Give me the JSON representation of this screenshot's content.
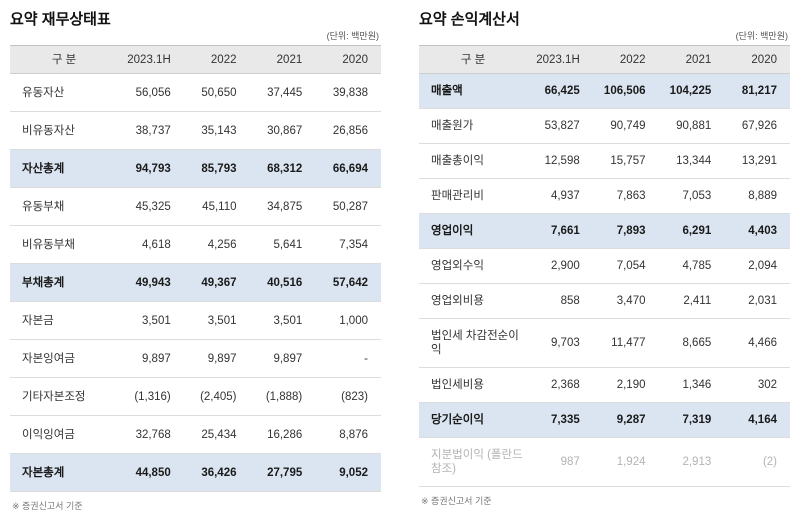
{
  "tables": [
    {
      "title": "요약 재무상태표",
      "unit": "(단위: 백만원)",
      "columns": [
        "구 분",
        "2023.1H",
        "2022",
        "2021",
        "2020"
      ],
      "rows": [
        {
          "label": "유동자산",
          "values": [
            "56,056",
            "50,650",
            "37,445",
            "39,838"
          ],
          "style": "normal"
        },
        {
          "label": "비유동자산",
          "values": [
            "38,737",
            "35,143",
            "30,867",
            "26,856"
          ],
          "style": "normal"
        },
        {
          "label": "자산총계",
          "values": [
            "94,793",
            "85,793",
            "68,312",
            "66,694"
          ],
          "style": "emphasis"
        },
        {
          "label": "유동부채",
          "values": [
            "45,325",
            "45,110",
            "34,875",
            "50,287"
          ],
          "style": "normal"
        },
        {
          "label": "비유동부채",
          "values": [
            "4,618",
            "4,256",
            "5,641",
            "7,354"
          ],
          "style": "normal"
        },
        {
          "label": "부채총계",
          "values": [
            "49,943",
            "49,367",
            "40,516",
            "57,642"
          ],
          "style": "emphasis"
        },
        {
          "label": "자본금",
          "values": [
            "3,501",
            "3,501",
            "3,501",
            "1,000"
          ],
          "style": "normal"
        },
        {
          "label": "자본잉여금",
          "values": [
            "9,897",
            "9,897",
            "9,897",
            "-"
          ],
          "style": "normal"
        },
        {
          "label": "기타자본조정",
          "values": [
            "(1,316)",
            "(2,405)",
            "(1,888)",
            "(823)"
          ],
          "style": "normal"
        },
        {
          "label": "이익잉여금",
          "values": [
            "32,768",
            "25,434",
            "16,286",
            "8,876"
          ],
          "style": "normal"
        },
        {
          "label": "자본총계",
          "values": [
            "44,850",
            "36,426",
            "27,795",
            "9,052"
          ],
          "style": "emphasis"
        }
      ],
      "footnote": "※ 증권신고서 기준"
    },
    {
      "title": "요약 손익계산서",
      "unit": "(단위: 백만원)",
      "columns": [
        "구 분",
        "2023.1H",
        "2022",
        "2021",
        "2020"
      ],
      "rows": [
        {
          "label": "매출액",
          "values": [
            "66,425",
            "106,506",
            "104,225",
            "81,217"
          ],
          "style": "emphasis"
        },
        {
          "label": "매출원가",
          "values": [
            "53,827",
            "90,749",
            "90,881",
            "67,926"
          ],
          "style": "normal"
        },
        {
          "label": "매출총이익",
          "values": [
            "12,598",
            "15,757",
            "13,344",
            "13,291"
          ],
          "style": "normal"
        },
        {
          "label": "판매관리비",
          "values": [
            "4,937",
            "7,863",
            "7,053",
            "8,889"
          ],
          "style": "normal"
        },
        {
          "label": "영업이익",
          "values": [
            "7,661",
            "7,893",
            "6,291",
            "4,403"
          ],
          "style": "emphasis"
        },
        {
          "label": "영업외수익",
          "values": [
            "2,900",
            "7,054",
            "4,785",
            "2,094"
          ],
          "style": "normal"
        },
        {
          "label": "영업외비용",
          "values": [
            "858",
            "3,470",
            "2,411",
            "2,031"
          ],
          "style": "normal"
        },
        {
          "label": "법인세 차감전순이익",
          "values": [
            "9,703",
            "11,477",
            "8,665",
            "4,466"
          ],
          "style": "normal"
        },
        {
          "label": "법인세비용",
          "values": [
            "2,368",
            "2,190",
            "1,346",
            "302"
          ],
          "style": "normal"
        },
        {
          "label": "당기순이익",
          "values": [
            "7,335",
            "9,287",
            "7,319",
            "4,164"
          ],
          "style": "emphasis"
        },
        {
          "label": "지분법이익 (폴란드 참조)",
          "values": [
            "987",
            "1,924",
            "2,913",
            "(2)"
          ],
          "style": "muted"
        }
      ],
      "footnote": "※ 증권신고서 기준"
    }
  ],
  "colors": {
    "header_bg": "#e9e9e9",
    "emphasis_bg": "#dbe5f1",
    "border": "#dcdcdc",
    "muted_text": "#b3b3b3"
  }
}
